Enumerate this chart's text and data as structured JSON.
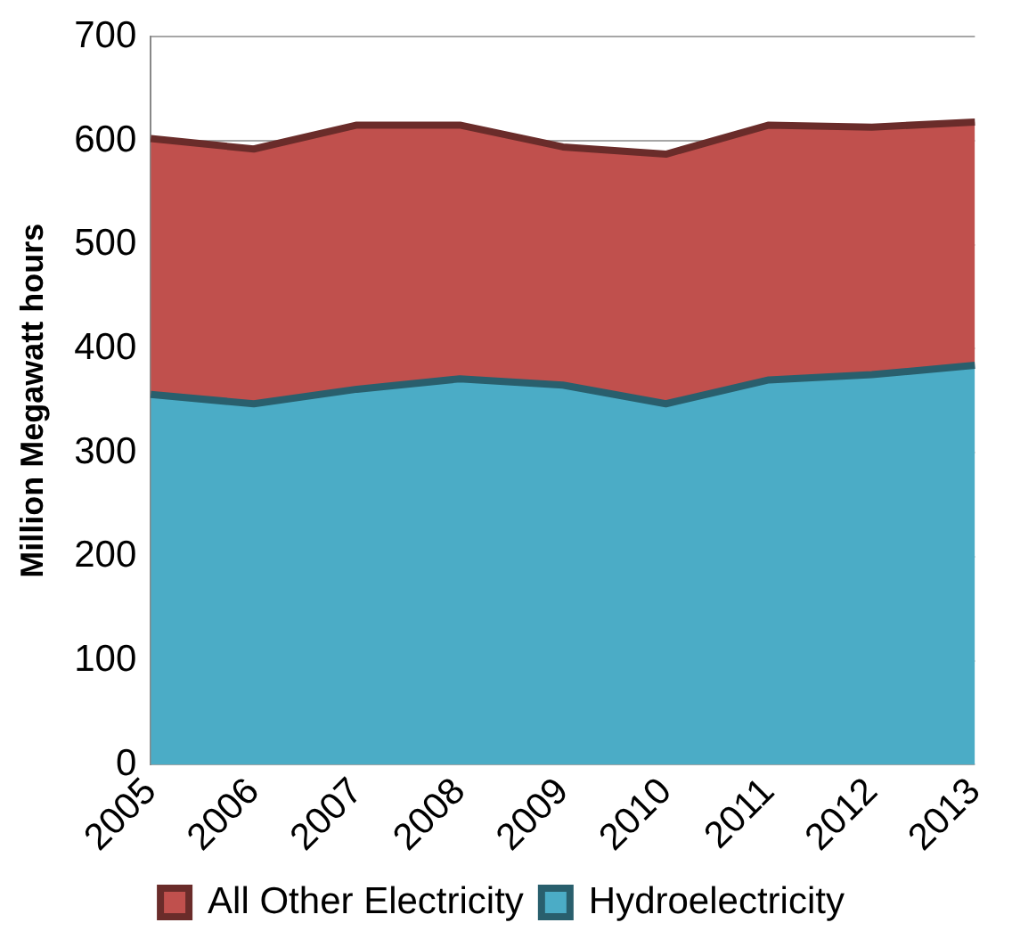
{
  "chart_data": {
    "type": "area",
    "stacked": true,
    "ylabel": "Million Megawatt hours",
    "categories": [
      "2005",
      "2006",
      "2007",
      "2008",
      "2009",
      "2010",
      "2011",
      "2012",
      "2013"
    ],
    "series": [
      {
        "name": "Hydroelectricity",
        "color": "#4bacc6",
        "values": [
          356,
          347,
          361,
          371,
          365,
          347,
          370,
          375,
          384
        ]
      },
      {
        "name": "All Other Electricity",
        "color": "#c0504d",
        "values": [
          246,
          245,
          254,
          244,
          229,
          240,
          245,
          238,
          234
        ]
      }
    ],
    "ylim": [
      0,
      700
    ],
    "yticks": [
      0,
      100,
      200,
      300,
      400,
      500,
      600,
      700
    ],
    "grid": "y",
    "legend": "bottom"
  }
}
